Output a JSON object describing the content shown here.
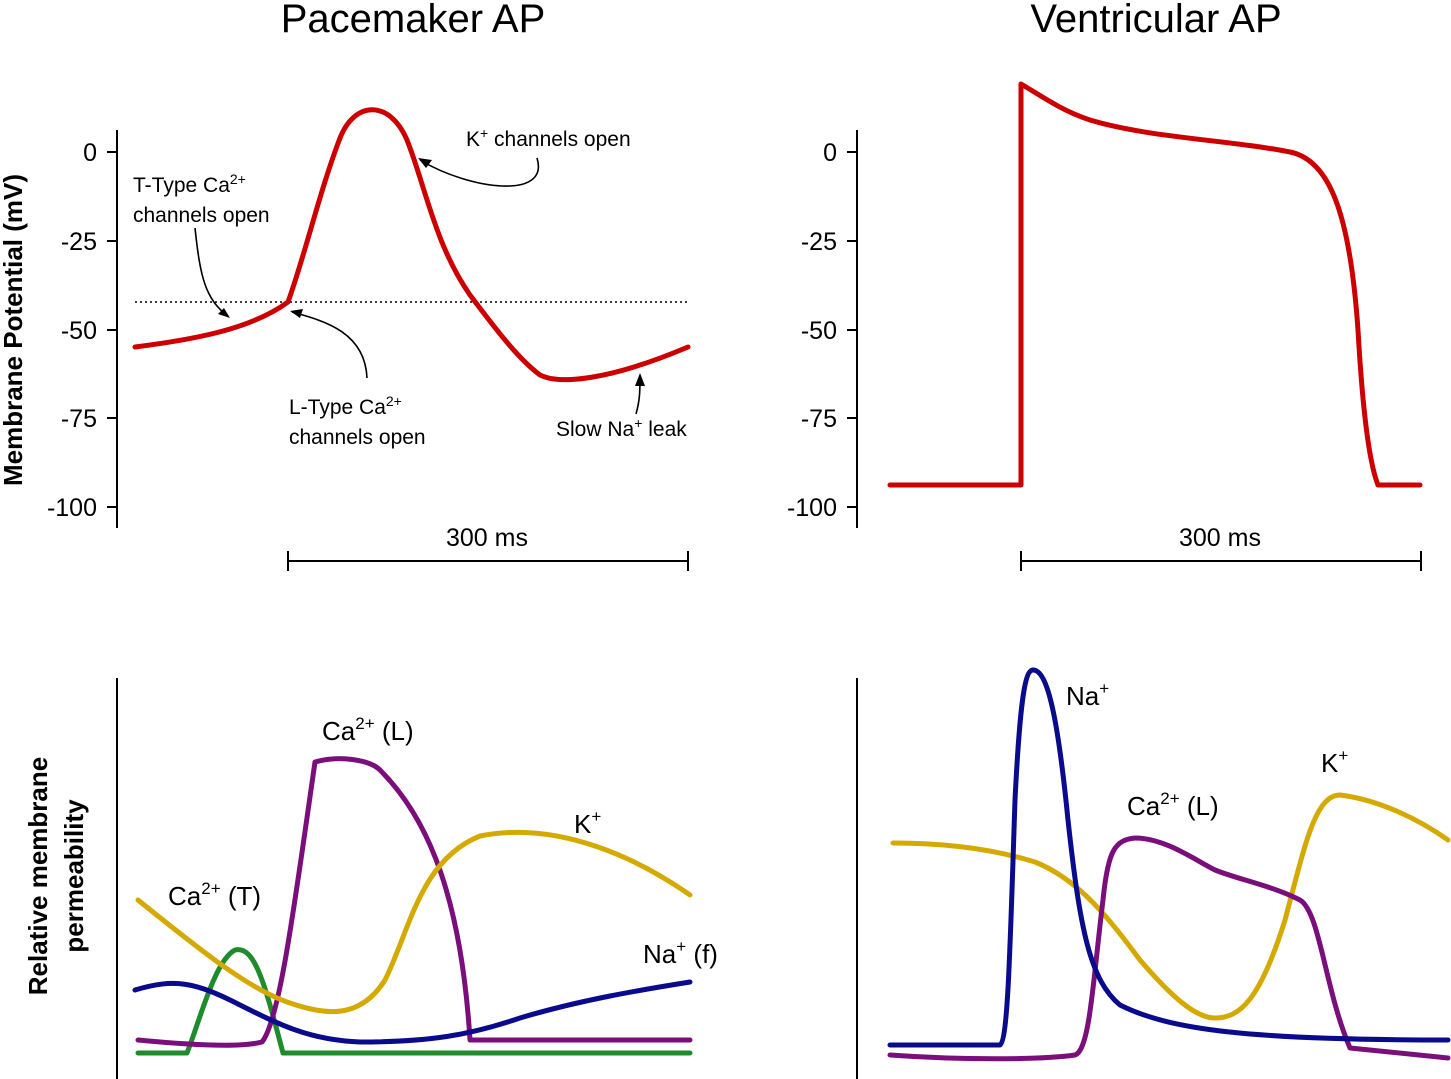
{
  "titles": {
    "pacemaker": "Pacemaker AP",
    "ventricular": "Ventricular AP"
  },
  "axes": {
    "ylabel_top": "Membrane Potential (mV)",
    "ylabel_bottom_line1": "Relative membrane",
    "ylabel_bottom_line2": "permeability",
    "yticks": [
      "0",
      "-25",
      "-50",
      "-75",
      "-100"
    ],
    "scalebar": "300 ms"
  },
  "annotations": {
    "t_type": {
      "base": "T-Type Ca",
      "sup": "2+",
      "line2": "channels open"
    },
    "l_type": {
      "base": "L-Type Ca",
      "sup": "2+",
      "line2": "channels open"
    },
    "k_open": {
      "base": "K",
      "sup": "+",
      "rest": " channels open"
    },
    "na_leak": {
      "base": "Slow Na",
      "sup": "+",
      "rest": " leak"
    }
  },
  "curve_labels": {
    "ca_t": {
      "base": "Ca",
      "sup": "2+",
      "rest": " (T)"
    },
    "ca_l": {
      "base": "Ca",
      "sup": "2+",
      "rest": " (L)"
    },
    "k_pm": {
      "base": "K",
      "sup": "+",
      "rest": ""
    },
    "na_f": {
      "base": "Na",
      "sup": "+",
      "rest": " (f)"
    },
    "na_v": {
      "base": "Na",
      "sup": "+",
      "rest": ""
    },
    "ca_l_v": {
      "base": "Ca",
      "sup": "2+",
      "rest": " (L)"
    },
    "k_v": {
      "base": "K",
      "sup": "+",
      "rest": ""
    }
  },
  "colors": {
    "membrane": "#cc0000",
    "na": "#0a0a8c",
    "ca_l": "#7a0e7a",
    "k": "#d4aa00",
    "ca_t": "#1e8c2c"
  }
}
